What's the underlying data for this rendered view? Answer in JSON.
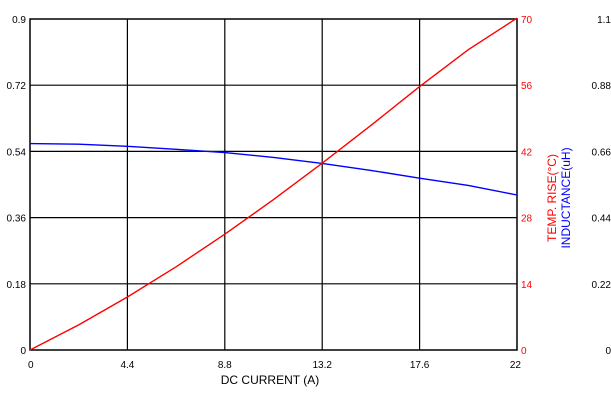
{
  "chart_data": {
    "type": "line",
    "xlabel": "DC CURRENT (A)",
    "x_ticks": [
      "0",
      "4.4",
      "8.8",
      "13.2",
      "17.6",
      "22"
    ],
    "xlim": [
      0,
      22
    ],
    "grid": true,
    "axes": {
      "left": {
        "ticks": [
          "0",
          "0.18",
          "0.36",
          "0.54",
          "0.72",
          "0.9"
        ],
        "ylim": [
          0,
          0.9
        ],
        "color": "#000000"
      },
      "temp": {
        "label": "TEMP. RISE(°C)",
        "ticks": [
          "0",
          "14",
          "28",
          "42",
          "56",
          "70"
        ],
        "ylim": [
          0,
          70
        ],
        "color": "#ff0000"
      },
      "inductance": {
        "label": "INDUCTANCE(uH)",
        "ticks": [
          "0",
          "0.22",
          "0.44",
          "0.66",
          "0.88",
          "1.1"
        ],
        "ylim": [
          0,
          1.1
        ],
        "color": "#0000ff"
      }
    },
    "series": [
      {
        "axis": "inductance",
        "color": "#0000ff",
        "x": [
          0,
          2.2,
          4.4,
          6.6,
          8.8,
          11,
          13.2,
          15.4,
          17.6,
          19.8,
          22
        ],
        "y": [
          0.686,
          0.684,
          0.677,
          0.667,
          0.656,
          0.64,
          0.62,
          0.597,
          0.571,
          0.547,
          0.515
        ]
      },
      {
        "axis": "temp",
        "color": "#ff0000",
        "x": [
          0,
          2.2,
          4.4,
          6.6,
          8.8,
          11,
          13.2,
          15.4,
          17.6,
          19.8,
          22
        ],
        "y": [
          0,
          5.3,
          11.2,
          17.6,
          24.5,
          31.8,
          39.5,
          47.5,
          55.7,
          63.5,
          70.2
        ]
      }
    ]
  }
}
